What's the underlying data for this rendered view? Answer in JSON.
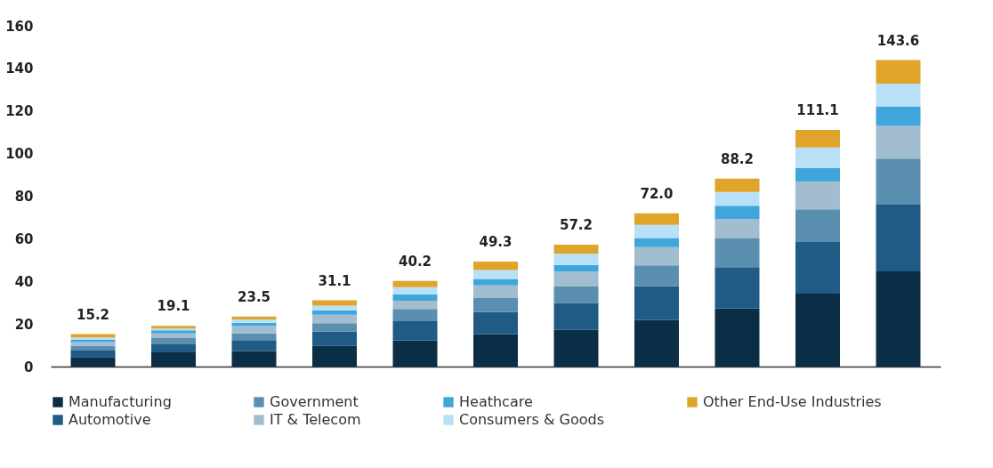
{
  "chart_data": {
    "type": "bar",
    "stacked": true,
    "categories": [
      null,
      null,
      null,
      null,
      null,
      null,
      null,
      null,
      null,
      null,
      null
    ],
    "series": [
      {
        "name": "Manufacturing",
        "color": "#0b2e47",
        "values": [
          4.5,
          6.7,
          7.2,
          9.7,
          12.3,
          15.2,
          17.2,
          21.8,
          27.4,
          34.3,
          44.7
        ]
      },
      {
        "name": "Automotive",
        "color": "#1f5b85",
        "values": [
          3.3,
          3.7,
          5.2,
          6.7,
          9.0,
          10.4,
          12.7,
          15.9,
          19.3,
          24.2,
          31.3
        ]
      },
      {
        "name": "Government",
        "color": "#5b8fb0",
        "values": [
          1.9,
          3.0,
          3.3,
          4.0,
          5.7,
          6.6,
          7.9,
          9.8,
          13.5,
          15.3,
          21.7
        ]
      },
      {
        "name": "IT & Telecom",
        "color": "#a3bdd0",
        "values": [
          1.8,
          2.2,
          3.3,
          3.9,
          3.9,
          5.9,
          6.8,
          8.6,
          9.1,
          13.0,
          15.3
        ]
      },
      {
        "name": "Heathcare",
        "color": "#3fa6dc",
        "values": [
          1.0,
          1.4,
          1.6,
          2.1,
          3.0,
          3.0,
          3.1,
          4.3,
          6.2,
          6.5,
          9.0
        ]
      },
      {
        "name": "Consumers & Goods",
        "color": "#b8e1f7",
        "values": [
          1.2,
          0.9,
          1.5,
          2.2,
          3.4,
          4.2,
          5.2,
          6.1,
          6.5,
          9.6,
          10.8
        ]
      },
      {
        "name": "Other End-Use Industries",
        "color": "#e0a42a",
        "values": [
          1.5,
          1.2,
          1.4,
          2.5,
          2.9,
          4.0,
          4.3,
          5.5,
          6.2,
          8.2,
          11.1
        ]
      }
    ],
    "totals": [
      "15.2",
      "19.1",
      "23.5",
      "31.1",
      "40.2",
      "49.3",
      "57.2",
      "72.0",
      "88.2",
      "111.1",
      "143.6"
    ],
    "ylim": [
      0,
      160
    ],
    "yticks": [
      0,
      20,
      40,
      60,
      80,
      100,
      120,
      140,
      160
    ],
    "grid": false,
    "legend": "bottom"
  }
}
